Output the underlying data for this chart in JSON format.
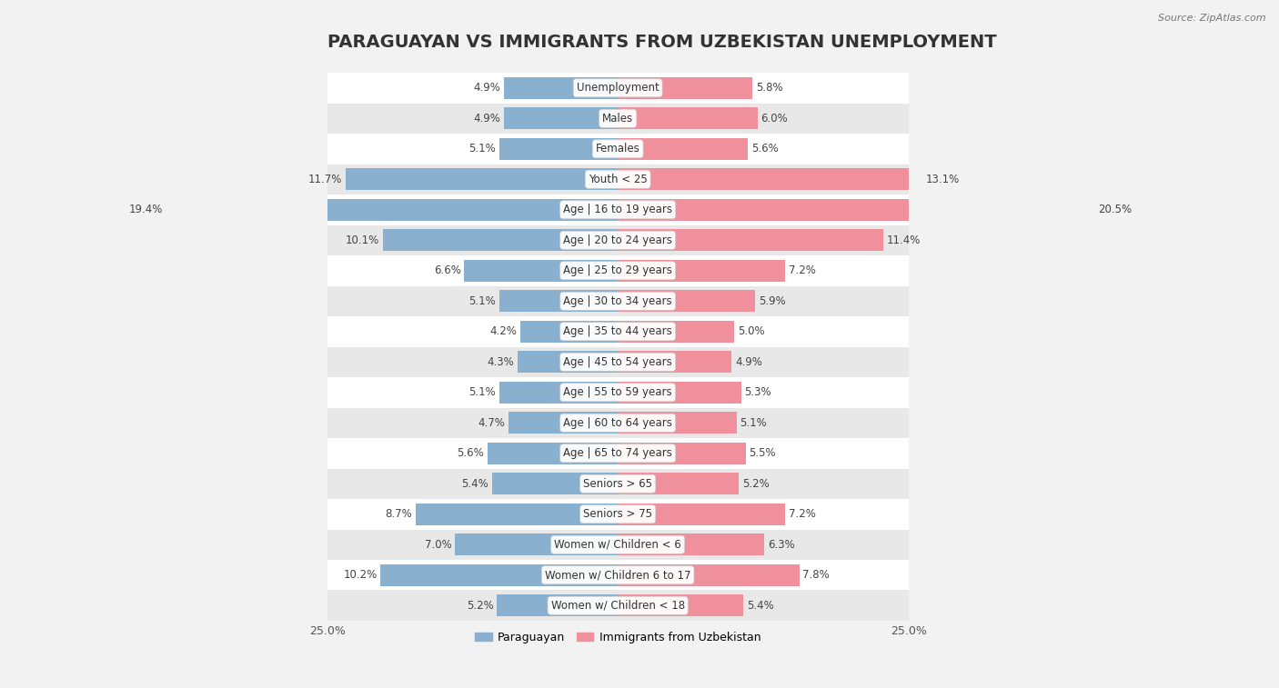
{
  "title": "PARAGUAYAN VS IMMIGRANTS FROM UZBEKISTAN UNEMPLOYMENT",
  "source": "Source: ZipAtlas.com",
  "categories": [
    "Unemployment",
    "Males",
    "Females",
    "Youth < 25",
    "Age | 16 to 19 years",
    "Age | 20 to 24 years",
    "Age | 25 to 29 years",
    "Age | 30 to 34 years",
    "Age | 35 to 44 years",
    "Age | 45 to 54 years",
    "Age | 55 to 59 years",
    "Age | 60 to 64 years",
    "Age | 65 to 74 years",
    "Seniors > 65",
    "Seniors > 75",
    "Women w/ Children < 6",
    "Women w/ Children 6 to 17",
    "Women w/ Children < 18"
  ],
  "paraguayan": [
    4.9,
    4.9,
    5.1,
    11.7,
    19.4,
    10.1,
    6.6,
    5.1,
    4.2,
    4.3,
    5.1,
    4.7,
    5.6,
    5.4,
    8.7,
    7.0,
    10.2,
    5.2
  ],
  "uzbekistan": [
    5.8,
    6.0,
    5.6,
    13.1,
    20.5,
    11.4,
    7.2,
    5.9,
    5.0,
    4.9,
    5.3,
    5.1,
    5.5,
    5.2,
    7.2,
    6.3,
    7.8,
    5.4
  ],
  "paraguayan_color": "#8ab0d0",
  "uzbekistan_color": "#f0909c",
  "bar_height": 0.72,
  "xlim_val": 25.0,
  "background_color": "#f2f2f2",
  "row_light_color": "#ffffff",
  "row_dark_color": "#e8e8e8",
  "legend_paraguayan": "Paraguayan",
  "legend_uzbekistan": "Immigrants from Uzbekistan",
  "title_fontsize": 14,
  "label_fontsize": 8.5,
  "value_fontsize": 8.5,
  "source_fontsize": 8
}
